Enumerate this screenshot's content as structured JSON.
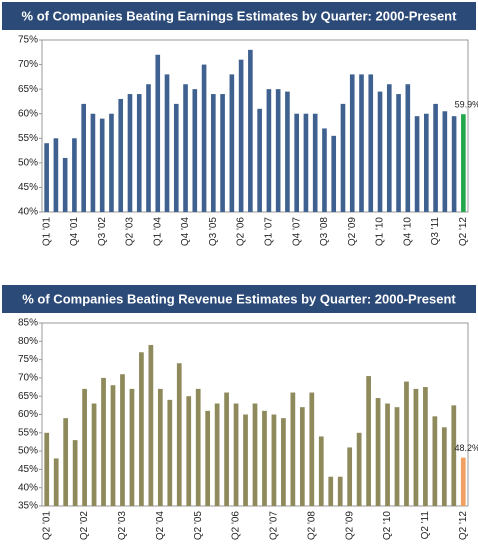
{
  "chart_data": [
    {
      "type": "bar",
      "title": "% of Companies Beating Earnings Estimates by Quarter: 2000-Present",
      "categories": [
        "Q1 '01",
        null,
        null,
        "Q4 '01",
        null,
        null,
        "Q3 '02",
        null,
        null,
        "Q2 '03",
        null,
        null,
        "Q1 '04",
        null,
        null,
        "Q4 '04",
        null,
        null,
        "Q3 '05",
        null,
        null,
        "Q2 '06",
        null,
        null,
        "Q1 '07",
        null,
        null,
        "Q4 '07",
        null,
        null,
        "Q3 '08",
        null,
        null,
        "Q2 '09",
        null,
        null,
        "Q1 '10",
        null,
        null,
        "Q4 '10",
        null,
        null,
        "Q3 '11",
        null,
        null,
        "Q2 '12"
      ],
      "values": [
        54,
        55,
        51,
        55,
        62,
        60,
        59,
        60,
        63,
        64,
        64,
        66,
        72,
        68,
        62,
        66,
        65,
        70,
        64,
        64,
        68,
        71,
        73,
        61,
        65,
        65,
        64.5,
        60,
        60,
        60,
        57,
        55.5,
        62,
        68,
        68,
        68,
        64.5,
        66,
        64,
        66,
        59.5,
        60,
        62,
        60.5,
        59.5,
        59.9
      ],
      "value_labels": [
        null,
        null,
        null,
        null,
        null,
        null,
        null,
        null,
        null,
        null,
        null,
        null,
        null,
        null,
        null,
        null,
        null,
        null,
        null,
        null,
        null,
        null,
        null,
        null,
        null,
        null,
        null,
        null,
        null,
        null,
        null,
        null,
        null,
        null,
        null,
        null,
        null,
        null,
        null,
        null,
        null,
        null,
        null,
        null,
        null,
        "59.9%"
      ],
      "color": "#3f6190",
      "last_color": "#22a84a",
      "title_color": "#2b4a78",
      "ylim": [
        40,
        75
      ],
      "yticks": [
        {
          "value": 40,
          "label": "40%"
        },
        {
          "value": 45,
          "label": "45%"
        },
        {
          "value": 50,
          "label": "50%"
        },
        {
          "value": 55,
          "label": "55%"
        },
        {
          "value": 60,
          "label": "60%"
        },
        {
          "value": 65,
          "label": "65%"
        },
        {
          "value": 70,
          "label": "70%"
        },
        {
          "value": 75,
          "label": "75%"
        }
      ],
      "grid": false
    },
    {
      "type": "bar",
      "title": "% of Companies Beating Revenue Estimates by Quarter: 2000-Present",
      "categories": [
        "Q2 '01",
        null,
        null,
        null,
        "Q2 '02",
        null,
        null,
        null,
        "Q2 '03",
        null,
        null,
        null,
        "Q2 '04",
        null,
        null,
        null,
        "Q2 '05",
        null,
        null,
        null,
        "Q2 '06",
        null,
        null,
        null,
        "Q2 '07",
        null,
        null,
        null,
        "Q2 '08",
        null,
        null,
        null,
        "Q2 '09",
        null,
        null,
        null,
        "Q2 '10",
        null,
        null,
        null,
        "Q2 '11",
        null,
        null,
        null,
        "Q2 '12"
      ],
      "values": [
        55,
        48,
        59,
        53,
        67,
        63,
        70,
        68,
        71,
        67,
        77,
        79,
        67,
        64,
        74,
        65,
        67,
        61,
        63,
        66,
        63,
        60,
        63,
        61,
        60,
        59,
        66,
        62,
        66,
        54,
        43,
        43,
        51,
        55,
        70.5,
        64.5,
        63,
        62,
        69,
        67,
        67.5,
        59.5,
        56.5,
        62.5,
        48.2
      ],
      "value_labels": [
        null,
        null,
        null,
        null,
        null,
        null,
        null,
        null,
        null,
        null,
        null,
        null,
        null,
        null,
        null,
        null,
        null,
        null,
        null,
        null,
        null,
        null,
        null,
        null,
        null,
        null,
        null,
        null,
        null,
        null,
        null,
        null,
        null,
        null,
        null,
        null,
        null,
        null,
        null,
        null,
        null,
        null,
        null,
        null,
        "48.2%"
      ],
      "color": "#8e8a5c",
      "last_color": "#f0a060",
      "title_color": "#2b4a78",
      "ylim": [
        35,
        85
      ],
      "yticks": [
        {
          "value": 35,
          "label": "35%"
        },
        {
          "value": 40,
          "label": "40%"
        },
        {
          "value": 45,
          "label": "45%"
        },
        {
          "value": 50,
          "label": "50%"
        },
        {
          "value": 55,
          "label": "55%"
        },
        {
          "value": 60,
          "label": "60%"
        },
        {
          "value": 65,
          "label": "65%"
        },
        {
          "value": 70,
          "label": "70%"
        },
        {
          "value": 75,
          "label": "75%"
        },
        {
          "value": 80,
          "label": "80%"
        },
        {
          "value": 85,
          "label": "85%"
        }
      ],
      "grid": false
    }
  ]
}
